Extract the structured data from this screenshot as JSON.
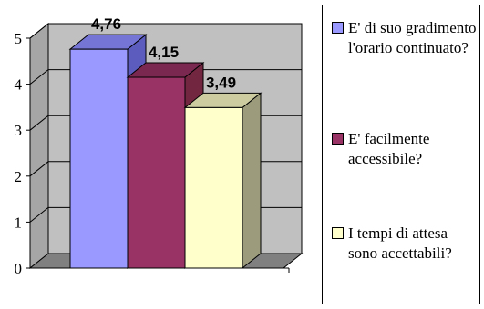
{
  "chart_data": {
    "type": "bar",
    "categories": [
      "E' di suo gradimento l'orario continuato?",
      "E' facilmente accessibile?",
      "I tempi di attesa sono accettabili?"
    ],
    "values": [
      4.76,
      4.15,
      3.49
    ],
    "value_labels": [
      "4,76",
      "4,15",
      "3,49"
    ],
    "y_ticks": [
      "0",
      "1",
      "2",
      "3",
      "4",
      "5"
    ],
    "ylim": [
      0,
      5
    ],
    "grid": true,
    "three_d": true,
    "legend_position": "right",
    "colors": [
      "#9999ff",
      "#993366",
      "#ffffcc"
    ],
    "side_colors": [
      "#5c5cbf",
      "#732640",
      "#9c9c7c"
    ],
    "top_colors": [
      "#7575d6",
      "#7a2850",
      "#cccca0"
    ]
  },
  "legend": [
    {
      "label": "E' di suo gradimento l'orario continuato?"
    },
    {
      "label": "E' facilmente accessibile?"
    },
    {
      "label": "I tempi di attesa sono accettabili?"
    }
  ]
}
